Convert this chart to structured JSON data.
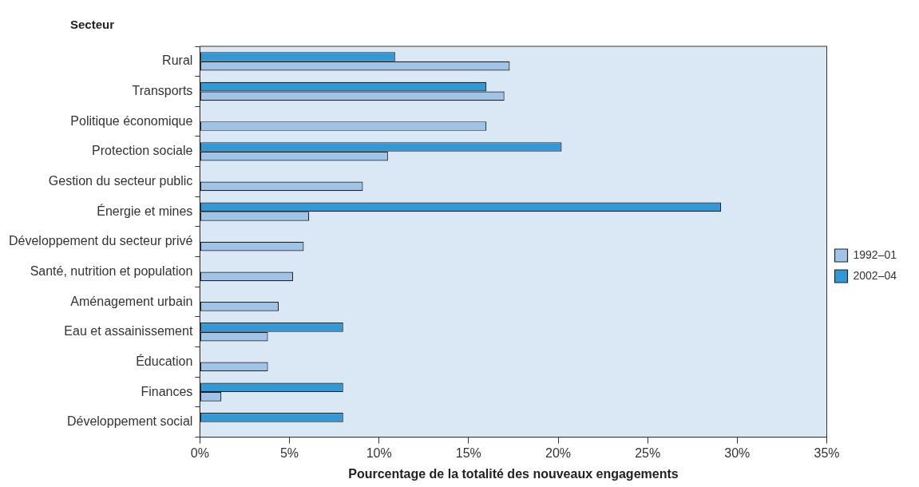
{
  "chart_data": {
    "type": "bar",
    "orientation": "horizontal",
    "ylabel": "Secteur",
    "xlabel": "Pourcentage de la totalité des nouveaux engagements",
    "categories": [
      "Rural",
      "Transports",
      "Politique économique",
      "Protection sociale",
      "Gestion du secteur public",
      "Énergie et mines",
      "Développement du secteur privé",
      "Santé, nutrition et population",
      "Aménagement urbain",
      "Eau et assainissement",
      "Éducation",
      "Finances",
      "Développement social"
    ],
    "series": [
      {
        "name": "1992–01",
        "color": "#a0c4e8",
        "values": [
          17.3,
          17.0,
          16.0,
          10.5,
          9.1,
          6.1,
          5.8,
          5.2,
          4.4,
          3.8,
          3.8,
          1.2,
          null
        ]
      },
      {
        "name": "2002–04",
        "color": "#3399d6",
        "values": [
          10.9,
          16.0,
          null,
          20.2,
          null,
          29.1,
          null,
          null,
          null,
          8.0,
          null,
          8.0,
          8.0
        ]
      }
    ],
    "xlim": [
      0,
      35
    ],
    "xticks": [
      {
        "value": 0,
        "label": "0%"
      },
      {
        "value": 5,
        "label": "5%"
      },
      {
        "value": 10,
        "label": "10%"
      },
      {
        "value": 15,
        "label": "15%"
      },
      {
        "value": 20,
        "label": "20%"
      },
      {
        "value": 25,
        "label": "25%"
      },
      {
        "value": 30,
        "label": "30%"
      },
      {
        "value": 35,
        "label": "35%"
      }
    ],
    "legend": "right",
    "grid": false
  }
}
